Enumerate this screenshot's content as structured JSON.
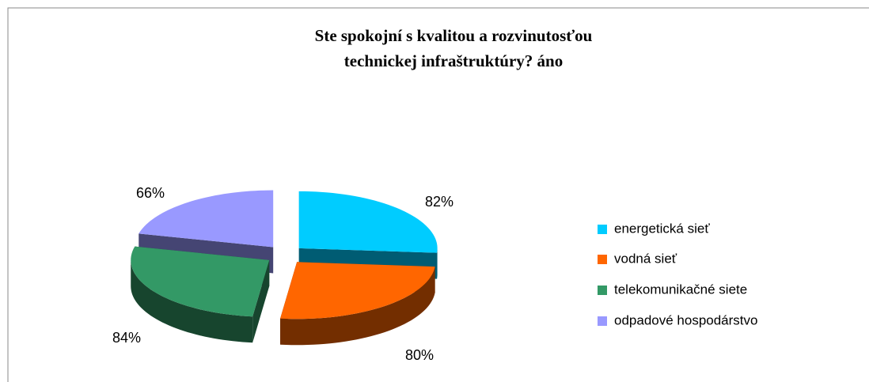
{
  "chart_data": {
    "type": "pie3d",
    "title": "Ste spokojní s kvalitou a rozvinutosťou technickej infraštruktúry? áno",
    "categories": [
      "energetická sieť",
      "vodná sieť",
      "telekomunikačné siete",
      "odpadové hospodárstvo"
    ],
    "values": [
      82,
      80,
      84,
      66
    ],
    "value_labels": [
      "82%",
      "80%",
      "84%",
      "66%"
    ],
    "colors": [
      "#00ccff",
      "#ff6600",
      "#339966",
      "#9999ff"
    ],
    "legend": "right"
  }
}
